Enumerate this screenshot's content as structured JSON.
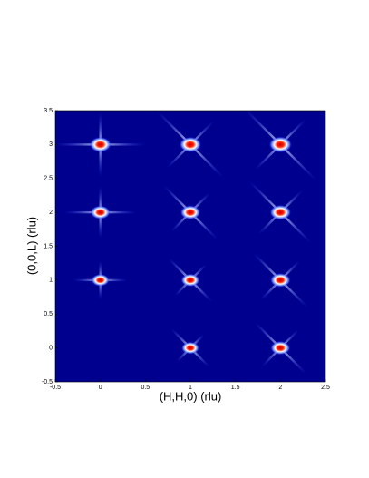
{
  "chart_data": {
    "type": "peakmap",
    "xlabel": "(H,H,0) (rlu)",
    "ylabel": "(0,0,L) (rlu)",
    "x": [
      0,
      1,
      2,
      0,
      1,
      2,
      0,
      1,
      2,
      1,
      2
    ],
    "y": [
      3,
      3,
      3,
      2,
      2,
      2,
      1,
      1,
      1,
      0,
      0
    ],
    "xlim": [
      -0.5,
      2.5
    ],
    "ylim": [
      -0.5,
      3.5
    ],
    "xticks": [
      -0.5,
      0,
      0.5,
      1,
      1.5,
      2,
      2.5
    ],
    "yticks": [
      -0.5,
      0,
      0.5,
      1,
      1.5,
      2,
      2.5,
      3,
      3.5
    ],
    "background": "#00008f"
  }
}
